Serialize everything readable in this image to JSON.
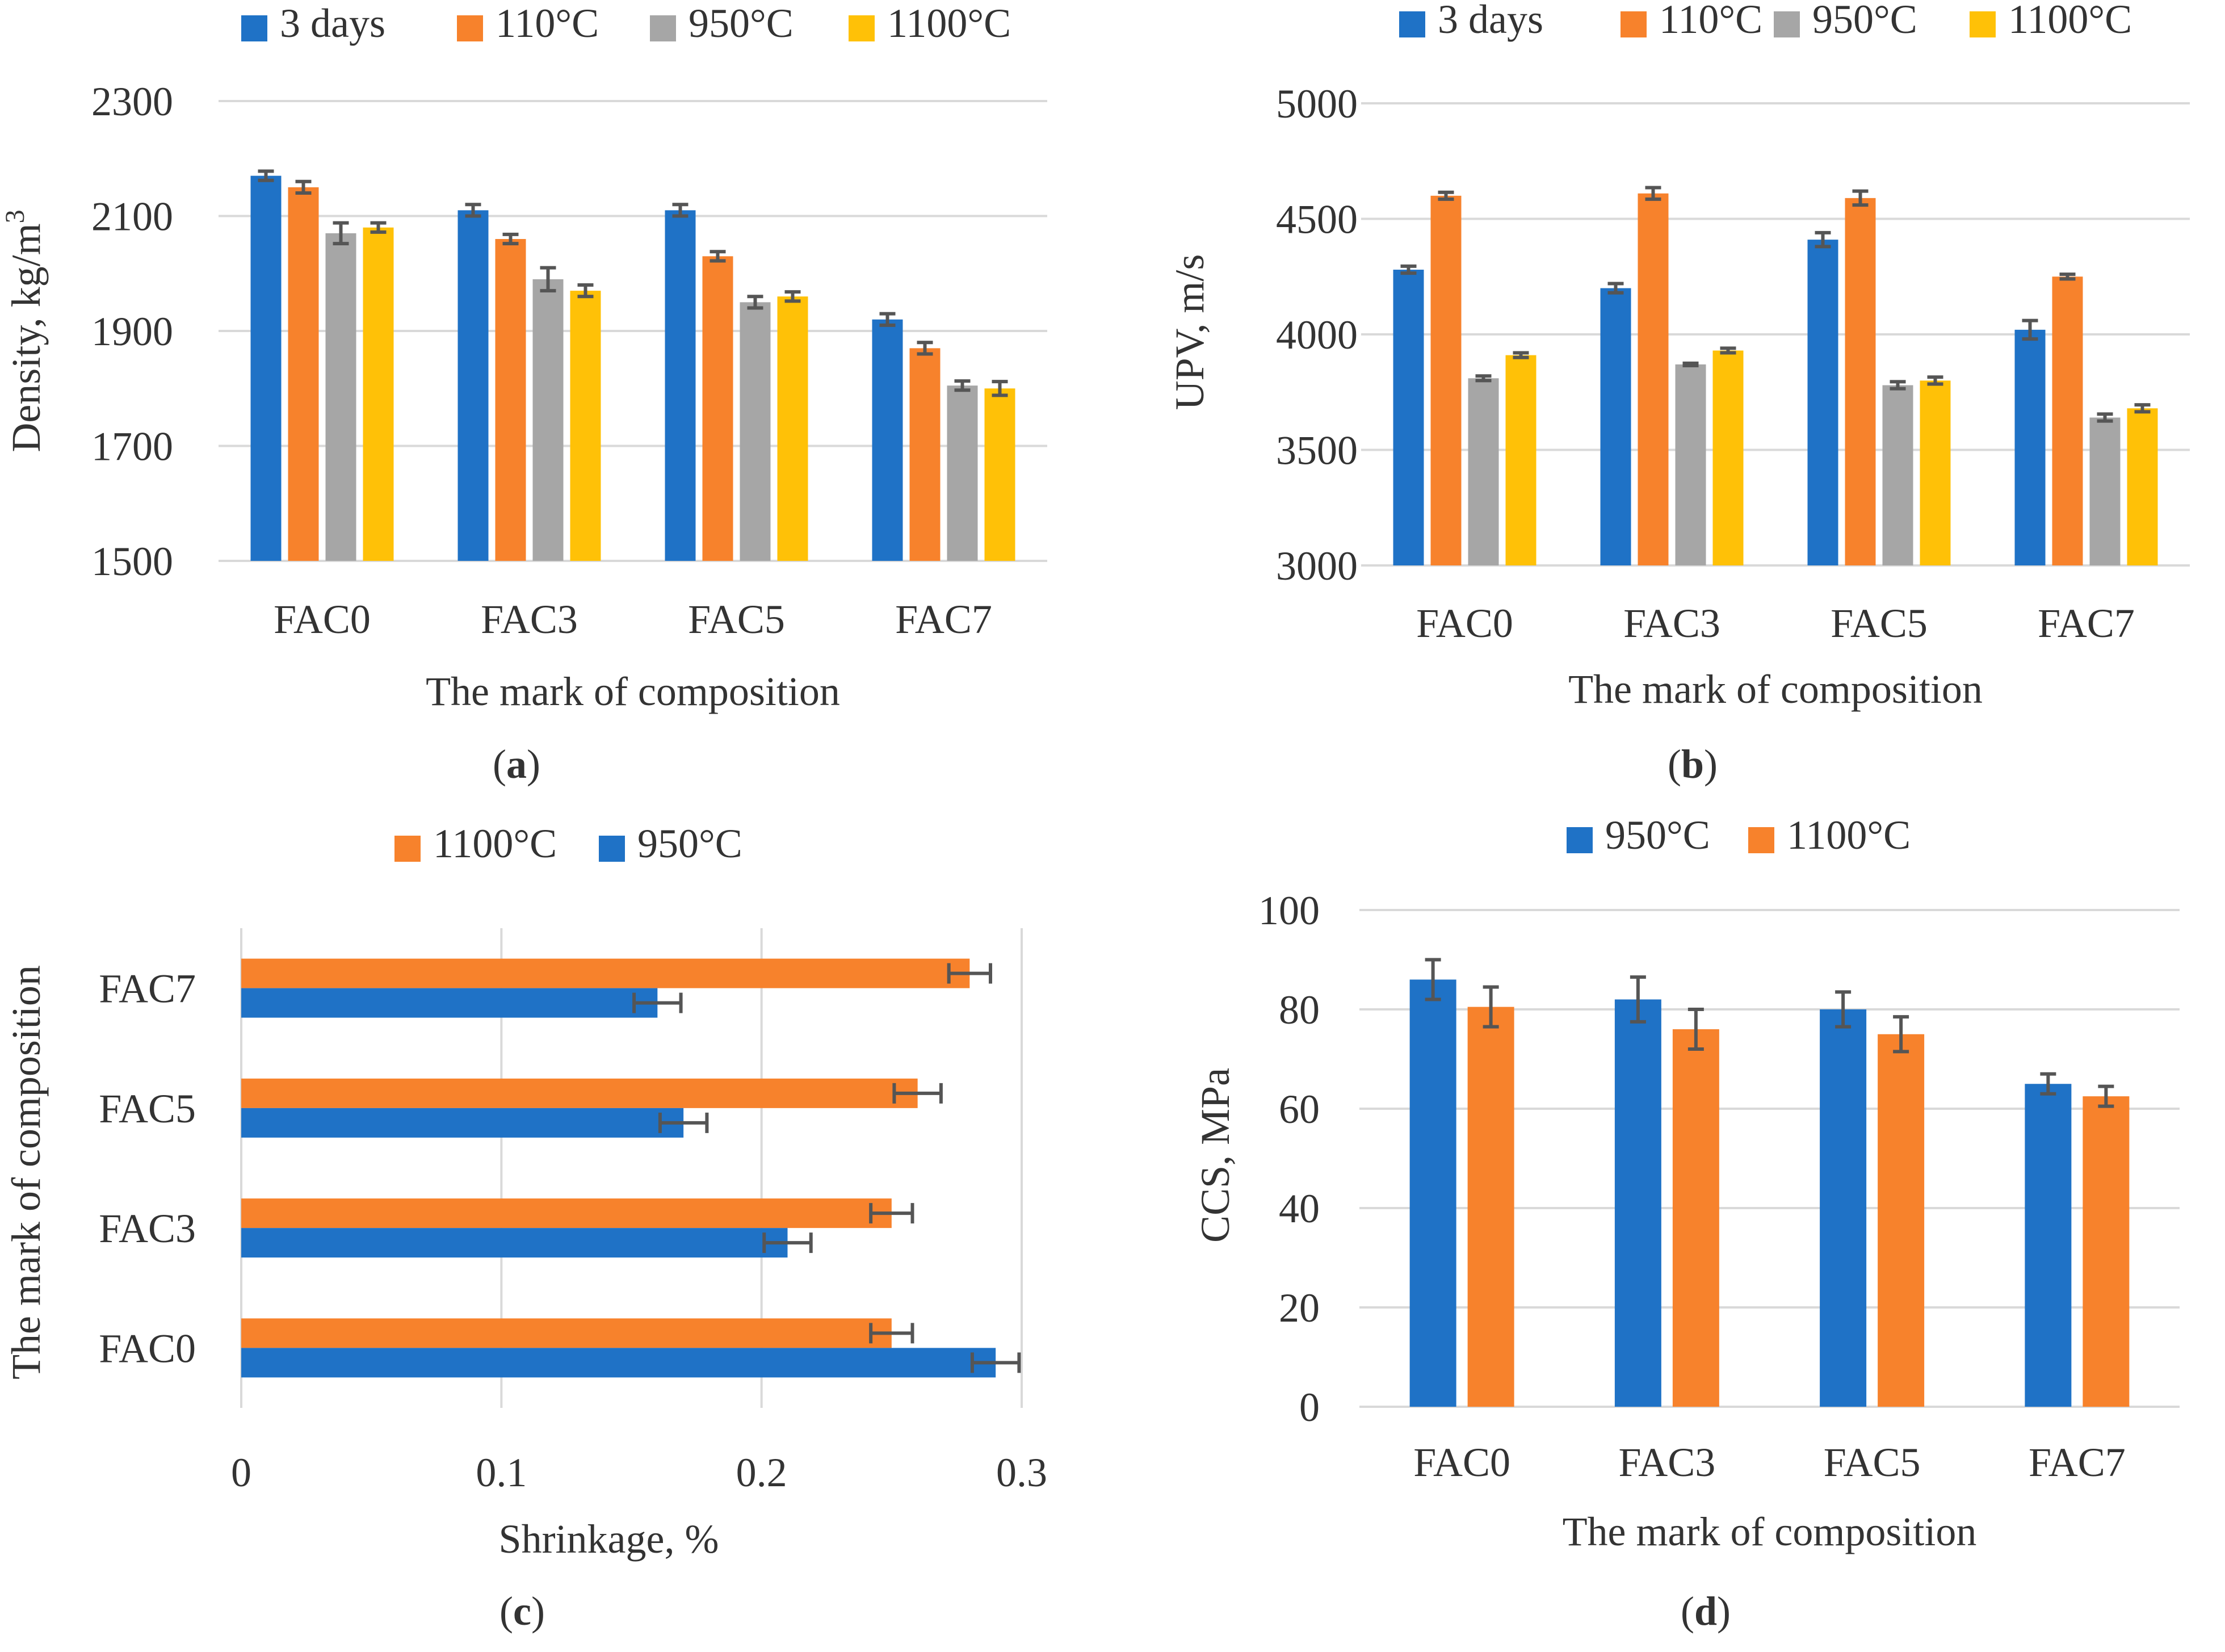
{
  "colors": {
    "blue": "#1f72c6",
    "orange": "#f7822c",
    "gray": "#a6a6a6",
    "yellow": "#ffc107",
    "grid": "#d9d9d9",
    "errorbar": "#555555"
  },
  "chart_data": [
    {
      "id": "a",
      "type": "bar",
      "panel_label": "a",
      "title": "",
      "xlabel": "The mark of composition",
      "ylabel": "Density, kg/m",
      "ylabel_superscript": "3",
      "ylim": [
        1500,
        2300
      ],
      "yticks": [
        1500,
        1700,
        1900,
        2100,
        2300
      ],
      "ytick_labels": [
        "1500",
        "1700",
        "1900",
        "2100",
        "2300"
      ],
      "grid": true,
      "legend_position": "top",
      "categories": [
        "FAC0",
        "FAC3",
        "FAC5",
        "FAC7"
      ],
      "series": [
        {
          "name": "3 days",
          "color": "#1f72c6",
          "values": [
            2170,
            2110,
            2110,
            1920
          ],
          "errors": [
            8,
            10,
            10,
            10
          ]
        },
        {
          "name": "110°C",
          "color": "#f7822c",
          "values": [
            2150,
            2060,
            2030,
            1870
          ],
          "errors": [
            10,
            8,
            8,
            10
          ]
        },
        {
          "name": "950°C",
          "color": "#a6a6a6",
          "values": [
            2070,
            1990,
            1950,
            1805
          ],
          "errors": [
            18,
            20,
            10,
            8
          ]
        },
        {
          "name": "1100°C",
          "color": "#ffc107",
          "values": [
            2080,
            1970,
            1960,
            1800
          ],
          "errors": [
            8,
            10,
            8,
            12
          ]
        }
      ]
    },
    {
      "id": "b",
      "type": "bar",
      "panel_label": "b",
      "title": "",
      "xlabel": "The mark of composition",
      "ylabel": "UPV, m/s",
      "ylim": [
        3000,
        5000
      ],
      "yticks": [
        3000,
        3500,
        4000,
        4500,
        5000
      ],
      "ytick_labels": [
        "3000",
        "3500",
        "4000",
        "4500",
        "5000"
      ],
      "grid": true,
      "legend_position": "top",
      "categories": [
        "FAC0",
        "FAC3",
        "FAC5",
        "FAC7"
      ],
      "series": [
        {
          "name": "3 days",
          "color": "#1f72c6",
          "values": [
            4280,
            4200,
            4410,
            4020
          ],
          "errors": [
            15,
            20,
            30,
            40
          ]
        },
        {
          "name": "110°C",
          "color": "#f7822c",
          "values": [
            4600,
            4610,
            4590,
            4250
          ],
          "errors": [
            15,
            25,
            30,
            10
          ]
        },
        {
          "name": "950°C",
          "color": "#a6a6a6",
          "values": [
            3810,
            3870,
            3780,
            3640
          ],
          "errors": [
            10,
            5,
            15,
            15
          ]
        },
        {
          "name": "1100°C",
          "color": "#ffc107",
          "values": [
            3910,
            3930,
            3800,
            3680
          ],
          "errors": [
            10,
            10,
            15,
            15
          ]
        }
      ]
    },
    {
      "id": "c",
      "type": "bar",
      "orientation": "horizontal",
      "panel_label": "c",
      "title": "",
      "xlabel": "Shrinkage, %",
      "ylabel": "The mark of composition",
      "xlim": [
        0,
        0.3
      ],
      "xticks": [
        0,
        0.1,
        0.2,
        0.3
      ],
      "xtick_labels": [
        "0",
        "0.1",
        "0.2",
        "0.3"
      ],
      "grid": true,
      "legend_position": "top",
      "legend_order": [
        "1100°C",
        "950°C"
      ],
      "categories": [
        "FAC0",
        "FAC3",
        "FAC5",
        "FAC7"
      ],
      "series": [
        {
          "name": "950°C",
          "color": "#1f72c6",
          "values": [
            0.29,
            0.21,
            0.17,
            0.16
          ],
          "errors": [
            0.009,
            0.009,
            0.009,
            0.009
          ]
        },
        {
          "name": "1100°C",
          "color": "#f7822c",
          "values": [
            0.25,
            0.25,
            0.26,
            0.28
          ],
          "errors": [
            0.008,
            0.008,
            0.009,
            0.008
          ]
        }
      ]
    },
    {
      "id": "d",
      "type": "bar",
      "panel_label": "d",
      "title": "",
      "xlabel": "The mark of composition",
      "ylabel": "CCS, MPa",
      "ylim": [
        0,
        100
      ],
      "yticks": [
        0,
        20,
        40,
        60,
        80,
        100
      ],
      "ytick_labels": [
        "0",
        "20",
        "40",
        "60",
        "80",
        "100"
      ],
      "grid": true,
      "legend_position": "top",
      "categories": [
        "FAC0",
        "FAC3",
        "FAC5",
        "FAC7"
      ],
      "series": [
        {
          "name": "950°C",
          "color": "#1f72c6",
          "values": [
            86,
            82,
            80,
            65
          ],
          "errors": [
            4,
            4.5,
            3.5,
            2
          ]
        },
        {
          "name": "1100°C",
          "color": "#f7822c",
          "values": [
            80.5,
            76,
            75,
            62.5
          ],
          "errors": [
            4,
            4,
            3.5,
            2
          ]
        }
      ]
    }
  ]
}
